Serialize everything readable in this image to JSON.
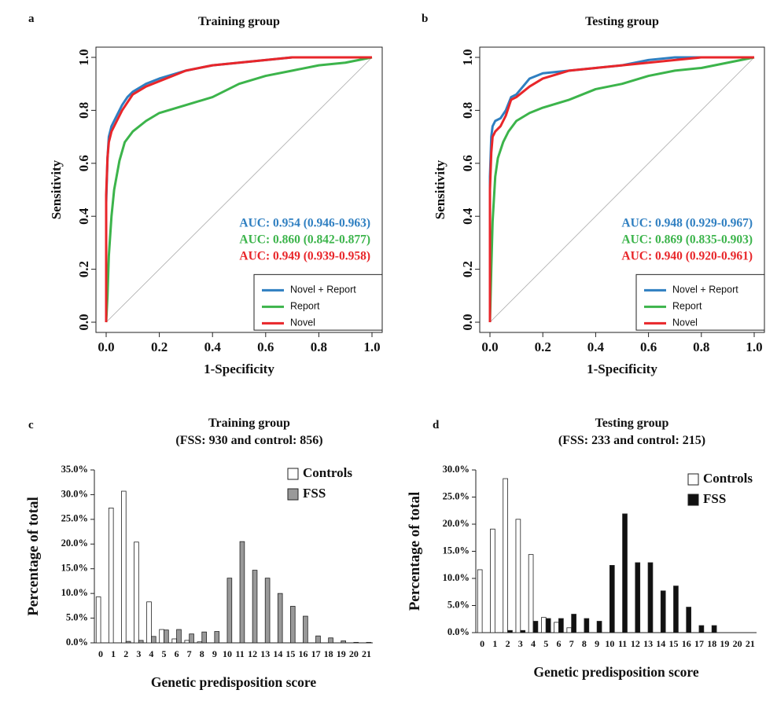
{
  "colors": {
    "novel_report": "#2f7fc1",
    "report": "#3cb44b",
    "novel": "#e8262a",
    "controls_fill": "#ffffff",
    "fss_fill_training": "#999999",
    "fss_fill_testing": "#111111"
  },
  "chart_data": [
    {
      "panel": "a",
      "type": "line",
      "title": "Training group",
      "xlabel": "1-Specificity",
      "ylabel": "Sensitivity",
      "xlim": [
        0,
        1
      ],
      "ylim": [
        0,
        1
      ],
      "x_ticks": [
        "0.0",
        "0.2",
        "0.4",
        "0.6",
        "0.8",
        "1.0"
      ],
      "y_ticks": [
        "0.0",
        "0.2",
        "0.4",
        "0.6",
        "0.8",
        "1.0"
      ],
      "legend_position": "bottom-right",
      "annotations": [
        "AUC: 0.954 (0.946-0.963)",
        "AUC: 0.860 (0.842-0.877)",
        "AUC: 0.949 (0.939-0.958)"
      ],
      "series": [
        {
          "name": "Novel + Report",
          "color": "#2f7fc1",
          "x": [
            0,
            0.0,
            0.005,
            0.01,
            0.02,
            0.04,
            0.06,
            0.08,
            0.1,
            0.15,
            0.2,
            0.3,
            0.4,
            0.5,
            0.6,
            0.7,
            0.8,
            0.9,
            1.0
          ],
          "y": [
            0,
            0.45,
            0.62,
            0.7,
            0.74,
            0.78,
            0.82,
            0.85,
            0.87,
            0.9,
            0.92,
            0.95,
            0.97,
            0.98,
            0.99,
            1.0,
            1.0,
            1.0,
            1.0
          ]
        },
        {
          "name": "Report",
          "color": "#3cb44b",
          "x": [
            0,
            0.005,
            0.01,
            0.02,
            0.03,
            0.05,
            0.07,
            0.1,
            0.15,
            0.2,
            0.3,
            0.4,
            0.5,
            0.6,
            0.7,
            0.8,
            0.9,
            0.95,
            1.0
          ],
          "y": [
            0,
            0.1,
            0.25,
            0.4,
            0.5,
            0.61,
            0.68,
            0.72,
            0.76,
            0.79,
            0.82,
            0.85,
            0.9,
            0.93,
            0.95,
            0.97,
            0.98,
            0.99,
            1.0
          ]
        },
        {
          "name": "Novel",
          "color": "#e8262a",
          "x": [
            0,
            0.0,
            0.005,
            0.01,
            0.02,
            0.04,
            0.06,
            0.08,
            0.1,
            0.15,
            0.2,
            0.3,
            0.4,
            0.5,
            0.6,
            0.7,
            0.8,
            0.9,
            1.0
          ],
          "y": [
            0,
            0.48,
            0.62,
            0.68,
            0.72,
            0.76,
            0.8,
            0.83,
            0.86,
            0.89,
            0.91,
            0.95,
            0.97,
            0.98,
            0.99,
            1.0,
            1.0,
            1.0,
            1.0
          ]
        }
      ]
    },
    {
      "panel": "b",
      "type": "line",
      "title": "Testing group",
      "xlabel": "1-Specificity",
      "ylabel": "Sensitivity",
      "xlim": [
        0,
        1
      ],
      "ylim": [
        0,
        1
      ],
      "x_ticks": [
        "0.0",
        "0.2",
        "0.4",
        "0.6",
        "0.8",
        "1.0"
      ],
      "y_ticks": [
        "0.0",
        "0.2",
        "0.4",
        "0.6",
        "0.8",
        "1.0"
      ],
      "legend_position": "bottom-right",
      "annotations": [
        "AUC: 0.948 (0.929-0.967)",
        "AUC: 0.869 (0.835-0.903)",
        "AUC: 0.940 (0.920-0.961)"
      ],
      "series": [
        {
          "name": "Novel + Report",
          "color": "#2f7fc1",
          "x": [
            0,
            0.0,
            0.005,
            0.01,
            0.02,
            0.04,
            0.06,
            0.08,
            0.1,
            0.15,
            0.2,
            0.3,
            0.4,
            0.5,
            0.6,
            0.7,
            0.8,
            0.9,
            1.0
          ],
          "y": [
            0,
            0.55,
            0.7,
            0.74,
            0.76,
            0.77,
            0.8,
            0.85,
            0.86,
            0.92,
            0.94,
            0.95,
            0.96,
            0.97,
            0.99,
            1.0,
            1.0,
            1.0,
            1.0
          ]
        },
        {
          "name": "Report",
          "color": "#3cb44b",
          "x": [
            0,
            0.005,
            0.01,
            0.02,
            0.03,
            0.05,
            0.07,
            0.1,
            0.15,
            0.2,
            0.3,
            0.4,
            0.5,
            0.6,
            0.7,
            0.8,
            0.9,
            0.95,
            1.0
          ],
          "y": [
            0,
            0.2,
            0.38,
            0.55,
            0.62,
            0.68,
            0.72,
            0.76,
            0.79,
            0.81,
            0.84,
            0.88,
            0.9,
            0.93,
            0.95,
            0.96,
            0.98,
            0.99,
            1.0
          ]
        },
        {
          "name": "Novel",
          "color": "#e8262a",
          "x": [
            0,
            0.0,
            0.005,
            0.01,
            0.02,
            0.04,
            0.06,
            0.08,
            0.1,
            0.15,
            0.2,
            0.3,
            0.4,
            0.5,
            0.6,
            0.7,
            0.8,
            0.9,
            1.0
          ],
          "y": [
            0,
            0.5,
            0.64,
            0.7,
            0.72,
            0.74,
            0.78,
            0.84,
            0.85,
            0.89,
            0.92,
            0.95,
            0.96,
            0.97,
            0.98,
            0.99,
            1.0,
            1.0,
            1.0
          ]
        }
      ]
    },
    {
      "panel": "c",
      "type": "bar",
      "title": "Training group",
      "subtitle": "(FSS: 930 and control: 856)",
      "xlabel": "Genetic predisposition score",
      "ylabel": "Percentage of total",
      "ylim": [
        0,
        35
      ],
      "y_ticks": [
        "0.0%",
        "5.0%",
        "10.0%",
        "15.0%",
        "20.0%",
        "25.0%",
        "30.0%",
        "35.0%"
      ],
      "categories": [
        "0",
        "1",
        "2",
        "3",
        "4",
        "5",
        "6",
        "7",
        "8",
        "9",
        "10",
        "11",
        "12",
        "13",
        "14",
        "15",
        "16",
        "17",
        "18",
        "19",
        "20",
        "21"
      ],
      "legend_position": "top-right",
      "series": [
        {
          "name": "Controls",
          "fill": "#ffffff",
          "values": [
            9.3,
            27.3,
            30.7,
            20.4,
            8.3,
            2.7,
            0.8,
            0.5,
            0.2,
            0,
            0,
            0,
            0,
            0,
            0,
            0,
            0,
            0,
            0,
            0,
            0,
            0
          ]
        },
        {
          "name": "FSS",
          "fill": "#999999",
          "values": [
            0,
            0,
            0.3,
            0.5,
            1.3,
            2.6,
            2.7,
            1.8,
            2.2,
            2.3,
            13.1,
            20.5,
            14.7,
            13.1,
            10.0,
            7.4,
            5.4,
            1.4,
            1.0,
            0.4,
            0.1,
            0.1
          ]
        }
      ]
    },
    {
      "panel": "d",
      "type": "bar",
      "title": "Testing group",
      "subtitle": "(FSS: 233 and control: 215)",
      "xlabel": "Genetic predisposition score",
      "ylabel": "Percentage of total",
      "ylim": [
        0,
        30
      ],
      "y_ticks": [
        "0.0%",
        "5.0%",
        "10.0%",
        "15.0%",
        "20.0%",
        "25.0%",
        "30.0%"
      ],
      "categories": [
        "0",
        "1",
        "2",
        "3",
        "4",
        "5",
        "6",
        "7",
        "8",
        "9",
        "10",
        "11",
        "12",
        "13",
        "14",
        "15",
        "16",
        "17",
        "18",
        "19",
        "20",
        "21"
      ],
      "legend_position": "top-right",
      "series": [
        {
          "name": "Controls",
          "fill": "#ffffff",
          "values": [
            11.6,
            19.1,
            28.4,
            20.9,
            14.4,
            2.8,
            1.9,
            0.9,
            0,
            0,
            0,
            0,
            0,
            0,
            0,
            0,
            0,
            0,
            0,
            0,
            0,
            0
          ]
        },
        {
          "name": "FSS",
          "fill": "#111111",
          "values": [
            0,
            0,
            0.4,
            0.4,
            2.1,
            2.6,
            2.6,
            3.4,
            2.6,
            2.1,
            12.4,
            21.9,
            12.9,
            12.9,
            7.7,
            8.6,
            4.7,
            1.3,
            1.3,
            0,
            0,
            0
          ]
        }
      ]
    }
  ],
  "panel_letters": [
    "a",
    "b",
    "c",
    "d"
  ]
}
